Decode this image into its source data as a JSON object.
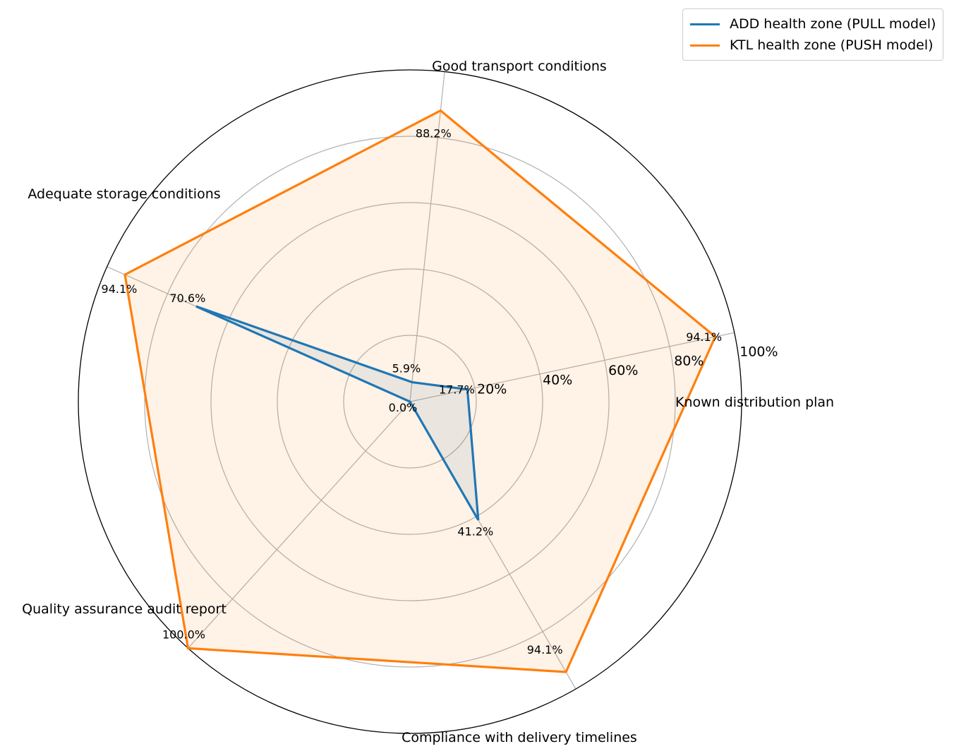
{
  "chart_data": {
    "type": "radar",
    "title": "",
    "axes": [
      "Known distribution plan",
      "Good transport conditions",
      "Adequate storage conditions",
      "Quality assurance audit report",
      "Compliance with delivery timelines"
    ],
    "rlim": [
      0,
      100
    ],
    "rticks": [
      20,
      40,
      60,
      80,
      100
    ],
    "rtick_labels": [
      "20%",
      "40%",
      "60%",
      "80%",
      "100%"
    ],
    "grid": true,
    "legend_position": "top-right",
    "series": [
      {
        "name": "ADD health zone (PULL model)",
        "color": "#1f77b4",
        "values": [
          17.7,
          5.9,
          70.6,
          0.0,
          41.2
        ],
        "labels": [
          "17.7%",
          "5.9%",
          "70.6%",
          "0.0%",
          "41.2%"
        ]
      },
      {
        "name": "KTL health zone (PUSH model)",
        "color": "#ff7f0e",
        "values": [
          94.1,
          88.2,
          94.1,
          100.0,
          94.1
        ],
        "labels": [
          "94.1%",
          "88.2%",
          "94.1%",
          "100.0%",
          "94.1%"
        ]
      }
    ]
  }
}
